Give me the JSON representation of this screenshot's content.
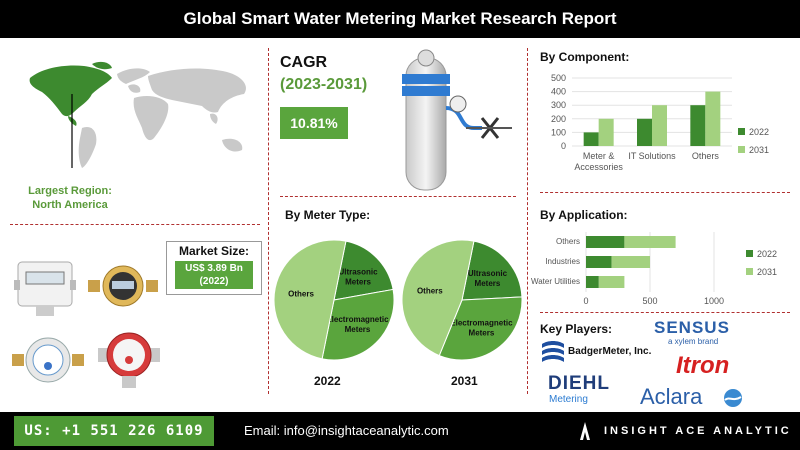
{
  "title": "Global Smart Water Metering Market Research Report",
  "region": {
    "label": "Largest Region:",
    "value": "North America"
  },
  "cagr": {
    "label": "CAGR",
    "period": "(2023-2031)",
    "value": "10.81%"
  },
  "market_size": {
    "label": "Market Size:",
    "value_line1": "US$ 3.89 Bn",
    "value_line2": "(2022)"
  },
  "sections": {
    "component": "By Component:",
    "meter_type": "By Meter Type:",
    "application": "By Application:",
    "key_players": "Key Players:"
  },
  "key_players": [
    "SENSUS",
    "a xylem brand",
    "BadgerMeter, Inc.",
    "Itron",
    "DIEHL",
    "Metering",
    "Aclara"
  ],
  "footer": {
    "phone": "US: +1 551 226 6109",
    "email": "Email: info@insightaceanalytic.com",
    "brand": "INSIGHT ACE ANALYTIC"
  },
  "colors": {
    "dark_green": "#3d8a2f",
    "light_green": "#a3d17f",
    "mid_green": "#5aa53d",
    "accent_red": "#b03030"
  },
  "chart_data": [
    {
      "type": "bar",
      "title": "By Component:",
      "categories": [
        [
          "Meter &",
          "Accessories"
        ],
        [
          "IT Solutions"
        ],
        [
          "Others"
        ]
      ],
      "series": [
        {
          "name": "2022",
          "values": [
            100,
            200,
            300
          ]
        },
        {
          "name": "2031",
          "values": [
            200,
            300,
            400
          ]
        }
      ],
      "ylim": [
        0,
        500
      ],
      "yticks": [
        0,
        100,
        200,
        300,
        400,
        500
      ],
      "legend": "right"
    },
    {
      "type": "bar",
      "orientation": "horizontal",
      "title": "By Application:",
      "categories": [
        "Others",
        "Industries",
        "Water Utilities"
      ],
      "series": [
        {
          "name": "2022",
          "values": [
            300,
            200,
            100
          ]
        },
        {
          "name": "2031",
          "values": [
            400,
            300,
            200
          ]
        }
      ],
      "xlim": [
        0,
        1000
      ],
      "xticks": [
        0,
        500,
        1000
      ],
      "legend": "right"
    },
    {
      "type": "pie",
      "title": "2022",
      "slices": [
        {
          "label": "Ultrasonic Meters",
          "value": 19
        },
        {
          "label": "Electromagnetic Meters",
          "value": 31
        },
        {
          "label": "Others",
          "value": 50
        }
      ]
    },
    {
      "type": "pie",
      "title": "2031",
      "slices": [
        {
          "label": "Ultrasonic Meters",
          "value": 21
        },
        {
          "label": "Electromagnetic Meters",
          "value": 32
        },
        {
          "label": "Others",
          "value": 47
        }
      ]
    }
  ]
}
